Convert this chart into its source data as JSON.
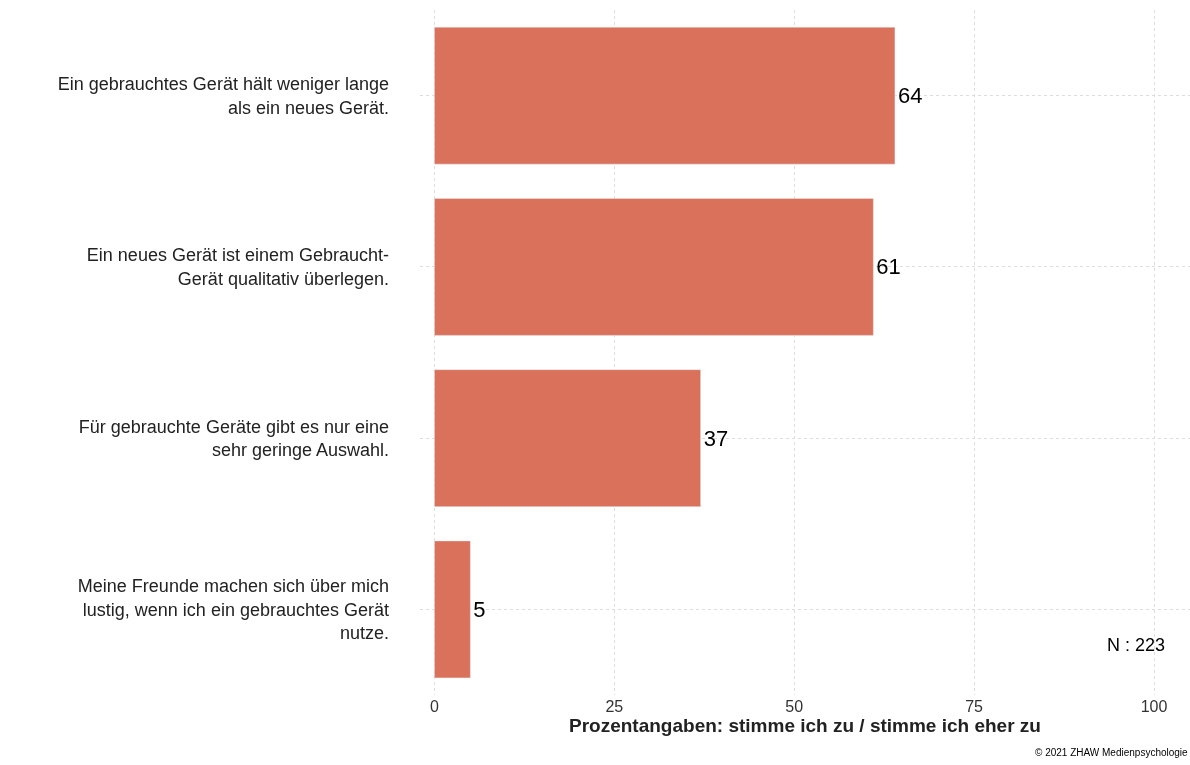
{
  "chart_data": {
    "type": "bar",
    "orientation": "horizontal",
    "categories": [
      "Ein gebrauchtes Gerät hält weniger lange\nals ein neues Gerät.",
      "Ein neues Gerät ist einem Gebraucht-\nGerät qualitativ überlegen.",
      "Für gebrauchte Geräte gibt es nur eine\nsehr geringe Auswahl.",
      "Meine Freunde machen sich über mich\nlustig, wenn ich ein gebrauchtes Gerät\nnutze."
    ],
    "values": [
      64,
      61,
      37,
      5
    ],
    "color": "#d9715b",
    "data_labels": true,
    "xlabel": "Prozentangaben: stimme ich zu / stimme ich eher zu",
    "xlim": [
      -2,
      105
    ],
    "xticks": [
      0,
      25,
      50,
      75,
      100
    ],
    "grid": true,
    "legend": false,
    "annotations": [
      "N : 223",
      "© 2021 ZHAW Medienpsychologie"
    ]
  }
}
